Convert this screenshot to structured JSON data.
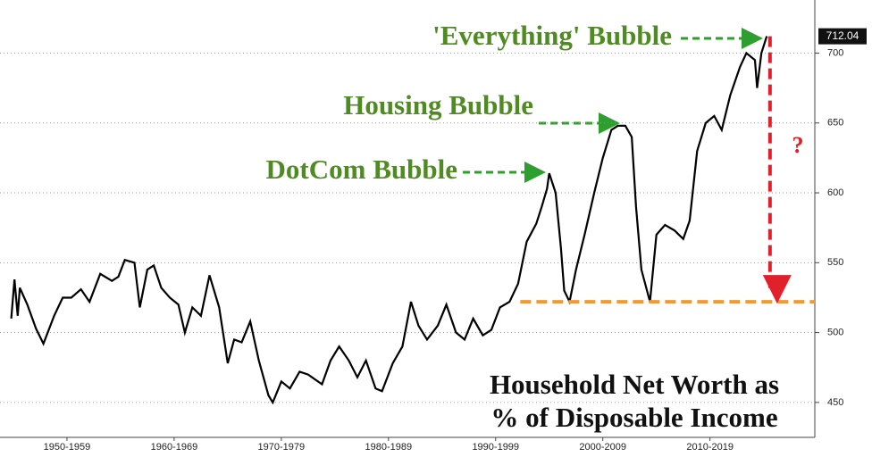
{
  "chart_data": {
    "type": "line",
    "annotations": [
      "'Everything' Bubble",
      "Housing Bubble",
      "DotCom Bubble",
      "?"
    ],
    "title_lines": [
      "Household Net Worth as",
      "% of Disposable Income"
    ],
    "x": [
      1949.8,
      1950.1,
      1950.4,
      1950.6,
      1951.3,
      1952.1,
      1952.8,
      1953.8,
      1954.6,
      1955.4,
      1956.3,
      1957.1,
      1958.1,
      1959.2,
      1959.8,
      1960.4,
      1961.3,
      1961.8,
      1962.5,
      1963.1,
      1963.8,
      1964.6,
      1965.4,
      1966.0,
      1966.7,
      1967.5,
      1968.3,
      1969.2,
      1970.0,
      1970.6,
      1971.3,
      1972.1,
      1972.9,
      1973.8,
      1974.2,
      1975.0,
      1975.8,
      1976.7,
      1977.5,
      1978.8,
      1979.6,
      1980.4,
      1981.3,
      1982.1,
      1982.9,
      1983.8,
      1984.4,
      1985.4,
      1986.3,
      1987.1,
      1987.8,
      1988.6,
      1989.6,
      1990.4,
      1991.3,
      1992.1,
      1992.9,
      1993.8,
      1994.6,
      1995.4,
      1996.3,
      1997.1,
      1997.9,
      1998.8,
      1999.3,
      1999.8,
      2000.0,
      2000.6,
      2001.1,
      2001.4,
      2001.9,
      2002.5,
      2003.3,
      2004.2,
      2005.0,
      2005.8,
      2006.4,
      2007.1,
      2007.7,
      2008.1,
      2008.6,
      2009.4,
      2010.0,
      2010.8,
      2011.7,
      2012.5,
      2013.1,
      2013.8,
      2014.6,
      2015.4,
      2016.1,
      2016.9,
      2017.8,
      2018.4,
      2019.2,
      2019.4,
      2019.8,
      2020.3
    ],
    "series": [
      {
        "color": "#000000",
        "values": [
          510,
          538,
          512,
          532,
          520,
          503,
          492,
          512,
          525,
          525,
          531,
          522,
          542,
          537,
          540,
          552,
          550,
          518,
          545,
          548,
          532,
          525,
          520,
          500,
          518,
          512,
          541,
          518,
          478,
          495,
          493,
          508,
          480,
          455,
          450,
          465,
          460,
          472,
          470,
          463,
          480,
          490,
          480,
          468,
          480,
          460,
          458,
          478,
          490,
          522,
          505,
          495,
          505,
          520,
          500,
          495,
          510,
          498,
          502,
          518,
          522,
          535,
          565,
          578,
          590,
          603,
          614,
          600,
          560,
          530,
          522,
          545,
          570,
          600,
          625,
          645,
          648,
          648,
          640,
          590,
          545,
          522,
          570,
          577,
          573,
          567,
          580,
          630,
          650,
          655,
          645,
          670,
          690,
          700,
          695,
          675,
          700,
          712.04
        ]
      }
    ],
    "reference_line": 522,
    "xlim": [
      1948.75,
      2024.2
    ],
    "xticks": [
      {
        "value": 1955,
        "label": "1950-1959"
      },
      {
        "value": 1965,
        "label": "1960-1969"
      },
      {
        "value": 1975,
        "label": "1970-1979"
      },
      {
        "value": 1985,
        "label": "1980-1989"
      },
      {
        "value": 1995,
        "label": "1990-1999"
      },
      {
        "value": 2005,
        "label": "2000-2009"
      },
      {
        "value": 2015,
        "label": "2010-2019"
      }
    ],
    "ylim": [
      425,
      738
    ],
    "yticks": [
      450,
      500,
      550,
      600,
      650,
      700
    ],
    "grid": true
  }
}
